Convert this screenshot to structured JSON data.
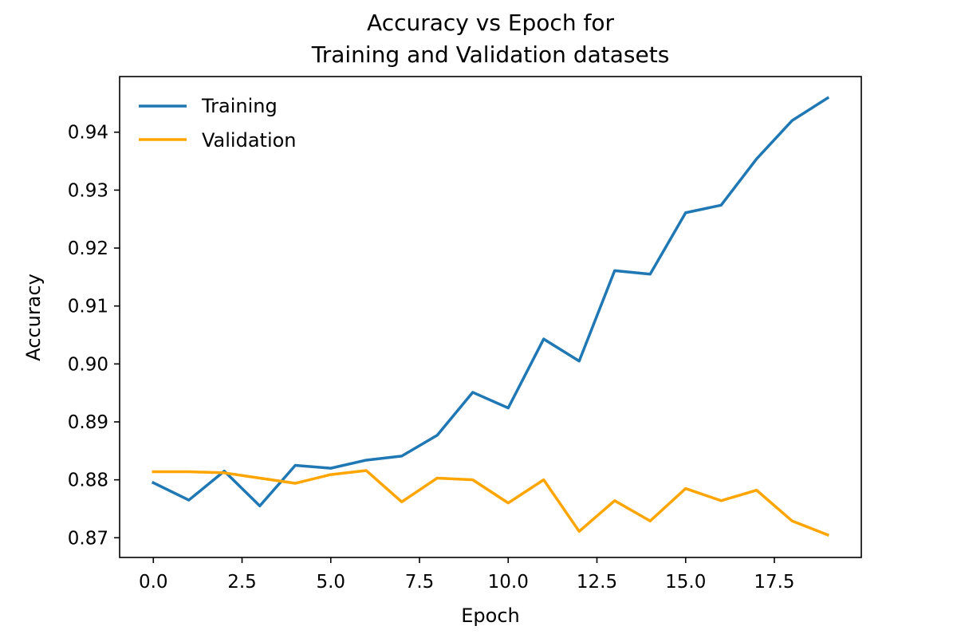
{
  "chart_data": {
    "type": "line",
    "title": [
      "Accuracy vs Epoch for",
      "Training and Validation datasets"
    ],
    "xlabel": "Epoch",
    "ylabel": "Accuracy",
    "xlim": [
      -0.95,
      19.95
    ],
    "ylim": [
      0.8666,
      0.9496
    ],
    "xticks": [
      0.0,
      2.5,
      5.0,
      7.5,
      10.0,
      12.5,
      15.0,
      17.5
    ],
    "xtick_labels": [
      "0.0",
      "2.5",
      "5.0",
      "7.5",
      "10.0",
      "12.5",
      "15.0",
      "17.5"
    ],
    "yticks": [
      0.87,
      0.88,
      0.89,
      0.9,
      0.91,
      0.92,
      0.93,
      0.94
    ],
    "ytick_labels": [
      "0.87",
      "0.88",
      "0.89",
      "0.90",
      "0.91",
      "0.92",
      "0.93",
      "0.94"
    ],
    "grid": false,
    "legend_position": "top-left",
    "x": [
      0,
      1,
      2,
      3,
      4,
      5,
      6,
      7,
      8,
      9,
      10,
      11,
      12,
      13,
      14,
      15,
      16,
      17,
      18,
      19
    ],
    "series": [
      {
        "name": "Training",
        "color": "#1f77b4",
        "values": [
          0.8795,
          0.8765,
          0.8815,
          0.8755,
          0.8825,
          0.882,
          0.8834,
          0.8841,
          0.8877,
          0.8951,
          0.8924,
          0.9043,
          0.9005,
          0.9161,
          0.9155,
          0.9261,
          0.9274,
          0.9354,
          0.942,
          0.9459
        ]
      },
      {
        "name": "Validation",
        "color": "#ffa500",
        "values": [
          0.8814,
          0.8814,
          0.8812,
          0.8803,
          0.8794,
          0.8809,
          0.8816,
          0.8762,
          0.8803,
          0.88,
          0.876,
          0.88,
          0.8711,
          0.8764,
          0.8729,
          0.8785,
          0.8764,
          0.8782,
          0.8729,
          0.8705
        ]
      }
    ]
  }
}
